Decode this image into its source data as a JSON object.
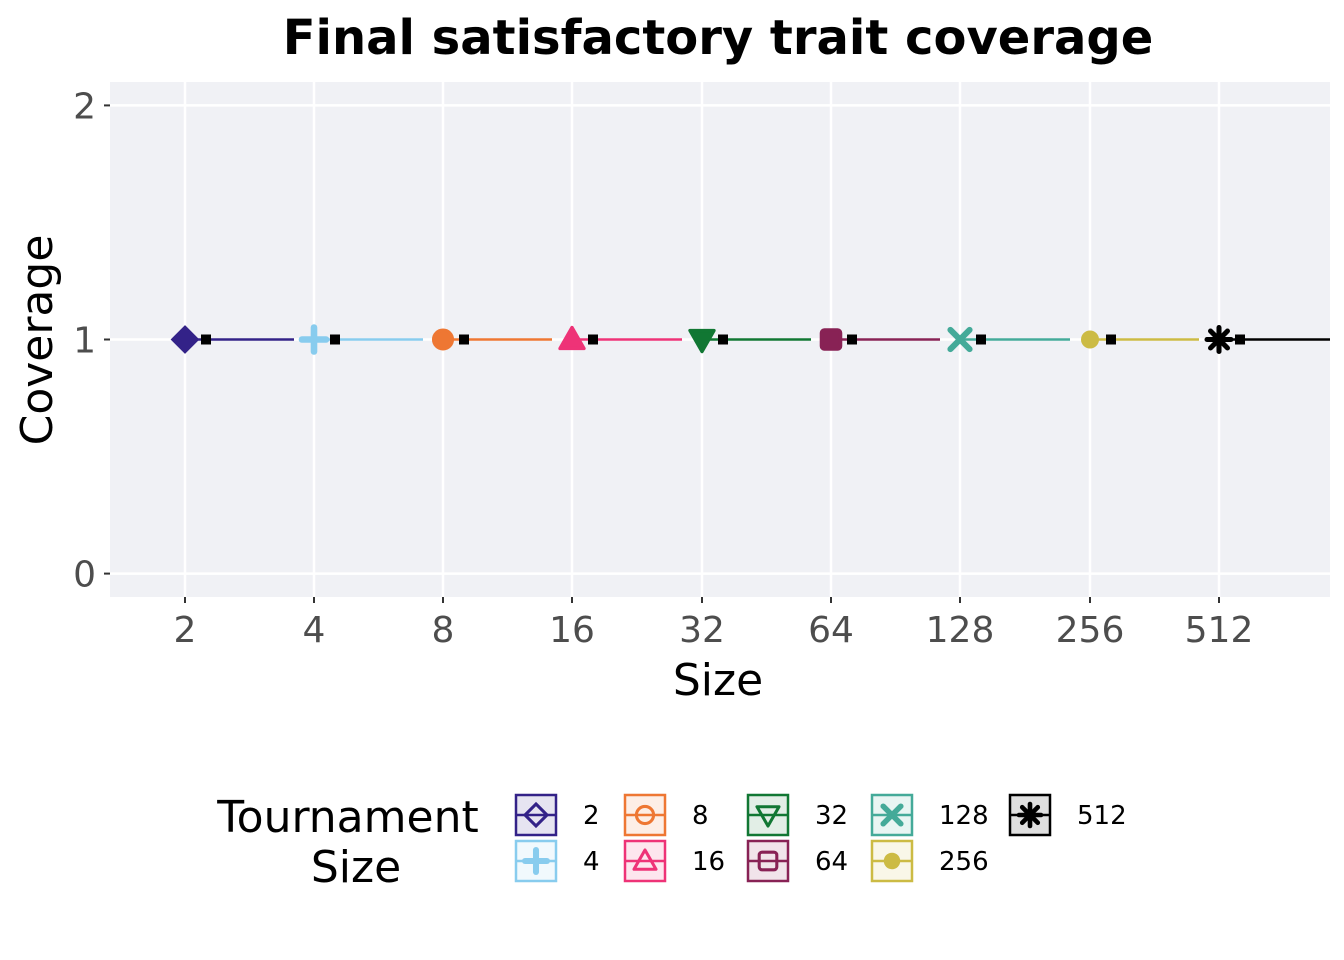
{
  "chart_data": {
    "type": "scatter",
    "title": "Final satisfactory trait coverage",
    "xlabel": "Size",
    "ylabel": "Coverage",
    "categories": [
      "2",
      "4",
      "8",
      "16",
      "32",
      "64",
      "128",
      "256",
      "512"
    ],
    "yticks": [
      "0",
      "1",
      "2"
    ],
    "ylim": [
      -0.1,
      2.1
    ],
    "grid": true,
    "legend": {
      "title_line1": "Tournament",
      "title_line2": "Size",
      "placement": "bottom",
      "entries": [
        "2",
        "4",
        "8",
        "16",
        "32",
        "64",
        "128",
        "256",
        "512"
      ]
    },
    "series": [
      {
        "name": "2",
        "value": 1,
        "mean": 1,
        "color": "#332288",
        "marker": "diamond"
      },
      {
        "name": "4",
        "value": 1,
        "mean": 1,
        "color": "#88CCEE",
        "marker": "plus"
      },
      {
        "name": "8",
        "value": 1,
        "mean": 1,
        "color": "#EE7733",
        "marker": "circle"
      },
      {
        "name": "16",
        "value": 1,
        "mean": 1,
        "color": "#EE3377",
        "marker": "triangle-up"
      },
      {
        "name": "32",
        "value": 1,
        "mean": 1,
        "color": "#117733",
        "marker": "triangle-down"
      },
      {
        "name": "64",
        "value": 1,
        "mean": 1,
        "color": "#882255",
        "marker": "square"
      },
      {
        "name": "128",
        "value": 1,
        "mean": 1,
        "color": "#44AA99",
        "marker": "cross"
      },
      {
        "name": "256",
        "value": 1,
        "mean": 1,
        "color": "#CCBB44",
        "marker": "dot"
      },
      {
        "name": "512",
        "value": 1,
        "mean": 1,
        "color": "#000000",
        "marker": "asterisk"
      }
    ]
  }
}
